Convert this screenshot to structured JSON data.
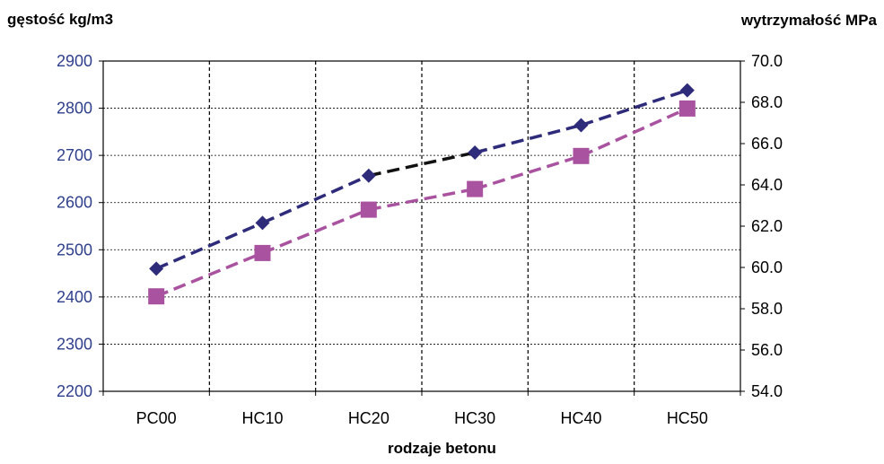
{
  "chart_data": {
    "type": "line",
    "categories": [
      "PC00",
      "HC10",
      "HC20",
      "HC30",
      "HC40",
      "HC50"
    ],
    "xlabel": "rodzaje betonu",
    "ylabel": "gęstość kg/m3",
    "ylabel_right": "wytrzymałość MPa",
    "ylim": [
      2200,
      2900
    ],
    "ylim_right": [
      54.0,
      70.0
    ],
    "yticks": [
      "2200",
      "2300",
      "2400",
      "2500",
      "2600",
      "2700",
      "2800",
      "2900"
    ],
    "yticks_right": [
      "54.0",
      "56.0",
      "58.0",
      "60.0",
      "62.0",
      "64.0",
      "66.0",
      "68.0",
      "70.0"
    ],
    "grid": true,
    "series": [
      {
        "axis": "left",
        "marker": "diamond",
        "color": "#2e2b7a",
        "values": [
          2460,
          2557,
          2657,
          2706,
          2764,
          2838
        ]
      },
      {
        "axis": "right",
        "marker": "square",
        "color": "#a9529f",
        "values": [
          58.6,
          60.7,
          62.8,
          63.8,
          65.4,
          67.7
        ]
      }
    ],
    "colors": {
      "left_tick": "#2e3f8c",
      "right_tick": "#000000"
    }
  }
}
